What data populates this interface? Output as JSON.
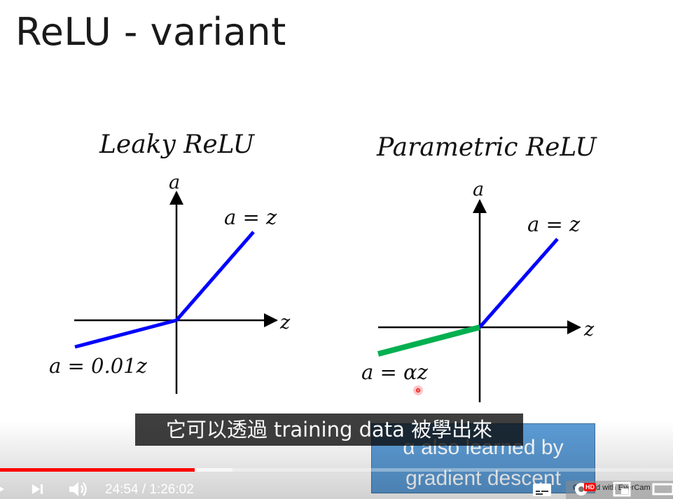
{
  "slide": {
    "title": "ReLU - variant",
    "left_graph": {
      "title": "Leaky ReLU",
      "y_axis": "a",
      "x_axis": "z",
      "positive_eq": "a = z",
      "negative_eq": "a = 0.01z",
      "positive_color": "#0000ff",
      "negative_color": "#0000ff"
    },
    "right_graph": {
      "title": "Parametric ReLU",
      "y_axis": "a",
      "x_axis": "z",
      "positive_eq": "a = z",
      "negative_eq": "a = αz",
      "positive_color": "#0000ff",
      "negative_color": "#00b050"
    },
    "callout": {
      "line1": "α also learned by",
      "line2": "gradient descent",
      "color": "#5b9bd5"
    }
  },
  "player": {
    "subtitle": "它可以透過 training data 被學出來",
    "current_time": "24:54",
    "separator": " / ",
    "duration": "1:26:02",
    "progress_fraction": 0.289,
    "buffered_fraction": 0.345,
    "progress_color": "#ff0000",
    "hd_badge": "HD",
    "watermark_text": "Created with EverCam"
  }
}
